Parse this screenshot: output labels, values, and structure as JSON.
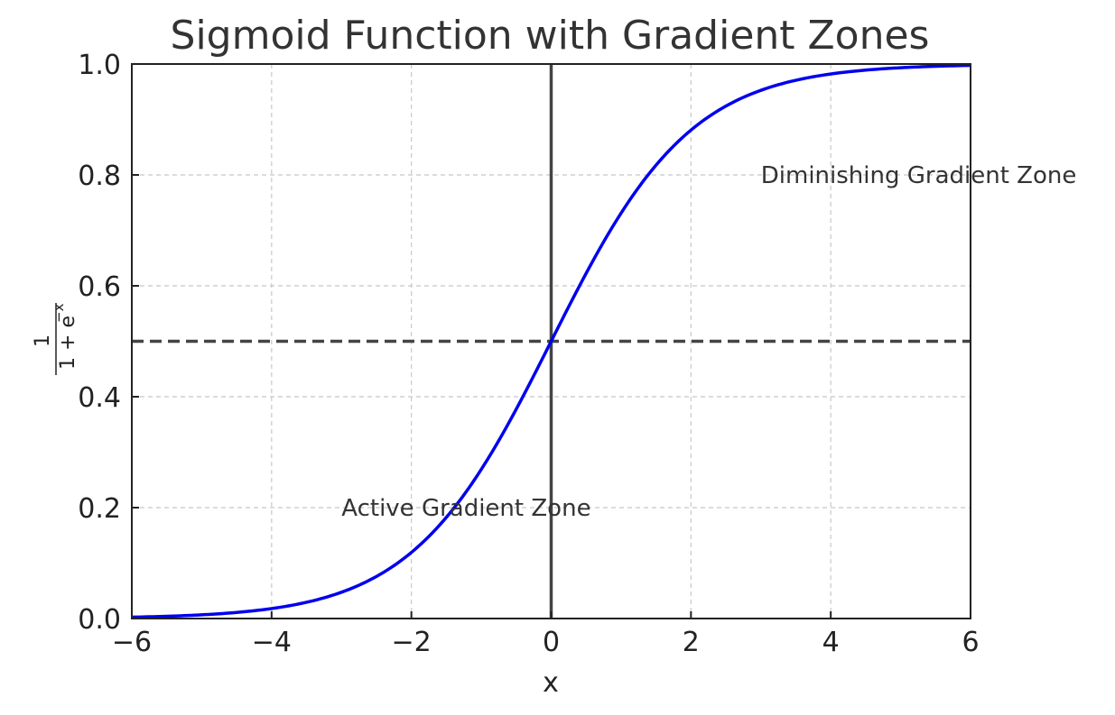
{
  "chart_data": {
    "type": "line",
    "title": "Sigmoid Function with Gradient Zones",
    "xlabel": "x",
    "ylabel": {
      "numerator": "1",
      "denominator": "1 + e",
      "exponent": "−x"
    },
    "xlim": [
      -6,
      6
    ],
    "ylim": [
      0,
      1
    ],
    "x_ticks": [
      -6,
      -4,
      -2,
      0,
      2,
      4,
      6
    ],
    "x_tick_labels": [
      "−6",
      "−4",
      "−2",
      "0",
      "2",
      "4",
      "6"
    ],
    "y_ticks": [
      0,
      0.2,
      0.4,
      0.6,
      0.8,
      1.0
    ],
    "y_tick_labels": [
      "0.0",
      "0.2",
      "0.4",
      "0.6",
      "0.8",
      "1.0"
    ],
    "grid": true,
    "series": [
      {
        "function": "sigmoid",
        "color": "#0000ee",
        "x": [
          -6,
          -5,
          -4,
          -3,
          -2,
          -1.5,
          -1,
          -0.5,
          0,
          0.5,
          1,
          1.5,
          2,
          3,
          4,
          5,
          6
        ],
        "y": [
          0.0025,
          0.0067,
          0.018,
          0.047,
          0.119,
          0.182,
          0.269,
          0.378,
          0.5,
          0.622,
          0.731,
          0.818,
          0.881,
          0.953,
          0.982,
          0.993,
          0.9975
        ]
      }
    ],
    "reference_lines": [
      {
        "orientation": "horizontal",
        "value": 0.5,
        "style": "dashed",
        "color": "#444444"
      },
      {
        "orientation": "vertical",
        "value": 0,
        "style": "solid",
        "color": "#444444"
      }
    ],
    "annotations": [
      {
        "text": "Active Gradient Zone",
        "x": -3,
        "y": 0.2
      },
      {
        "text": "Diminishing Gradient Zone",
        "x": 3,
        "y": 0.8
      }
    ]
  }
}
